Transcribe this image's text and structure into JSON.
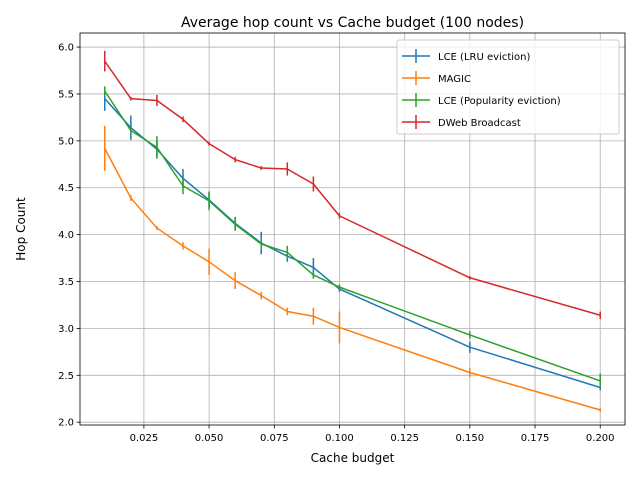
{
  "chart_data": {
    "type": "line",
    "title": "Average hop count vs Cache budget (100 nodes)",
    "xlabel": "Cache budget",
    "ylabel": "Hop Count",
    "xlim": [
      0.0005,
      0.2095
    ],
    "ylim": [
      1.97,
      6.15
    ],
    "xticks": [
      0.025,
      0.05,
      0.075,
      0.1,
      0.125,
      0.15,
      0.175,
      0.2
    ],
    "xtick_labels": [
      "0.025",
      "0.050",
      "0.075",
      "0.100",
      "0.125",
      "0.150",
      "0.175",
      "0.200"
    ],
    "yticks": [
      2.0,
      2.5,
      3.0,
      3.5,
      4.0,
      4.5,
      5.0,
      5.5,
      6.0
    ],
    "ytick_labels": [
      "2.0",
      "2.5",
      "3.0",
      "3.5",
      "4.0",
      "4.5",
      "5.0",
      "5.5",
      "6.0"
    ],
    "grid": true,
    "legend_position": "top-right",
    "x": [
      0.01,
      0.02,
      0.03,
      0.04,
      0.05,
      0.06,
      0.07,
      0.08,
      0.09,
      0.1,
      0.15,
      0.2
    ],
    "series": [
      {
        "name": "LCE (LRU eviction)",
        "color": "#1f77b4",
        "values": [
          5.45,
          5.14,
          4.91,
          4.6,
          4.37,
          4.12,
          3.91,
          3.77,
          3.65,
          3.42,
          2.8,
          2.37
        ],
        "errors": [
          0.13,
          0.13,
          0.09,
          0.1,
          0.08,
          0.07,
          0.12,
          0.06,
          0.1,
          0.03,
          0.06,
          0.03
        ]
      },
      {
        "name": "MAGIC",
        "color": "#ff7f0e",
        "values": [
          4.92,
          4.39,
          4.07,
          3.88,
          3.71,
          3.51,
          3.35,
          3.18,
          3.13,
          3.01,
          2.53,
          2.13
        ],
        "errors": [
          0.24,
          0.03,
          0.02,
          0.04,
          0.14,
          0.09,
          0.04,
          0.04,
          0.09,
          0.17,
          0.05,
          0.02
        ]
      },
      {
        "name": "LCE (Popularity eviction)",
        "color": "#2ca02c",
        "values": [
          5.53,
          5.11,
          4.93,
          4.52,
          4.36,
          4.11,
          3.9,
          3.81,
          3.57,
          3.44,
          2.93,
          2.44
        ],
        "errors": [
          0.05,
          0.03,
          0.12,
          0.09,
          0.1,
          0.07,
          0.05,
          0.07,
          0.04,
          0.03,
          0.04,
          0.08
        ]
      },
      {
        "name": "DWeb Broadcast",
        "color": "#d62728",
        "values": [
          5.85,
          5.45,
          5.43,
          5.23,
          4.97,
          4.8,
          4.71,
          4.7,
          4.54,
          4.2,
          3.54,
          3.14
        ],
        "errors": [
          0.11,
          0.02,
          0.06,
          0.03,
          0.02,
          0.03,
          0.02,
          0.07,
          0.08,
          0.03,
          0.02,
          0.04
        ]
      }
    ]
  }
}
